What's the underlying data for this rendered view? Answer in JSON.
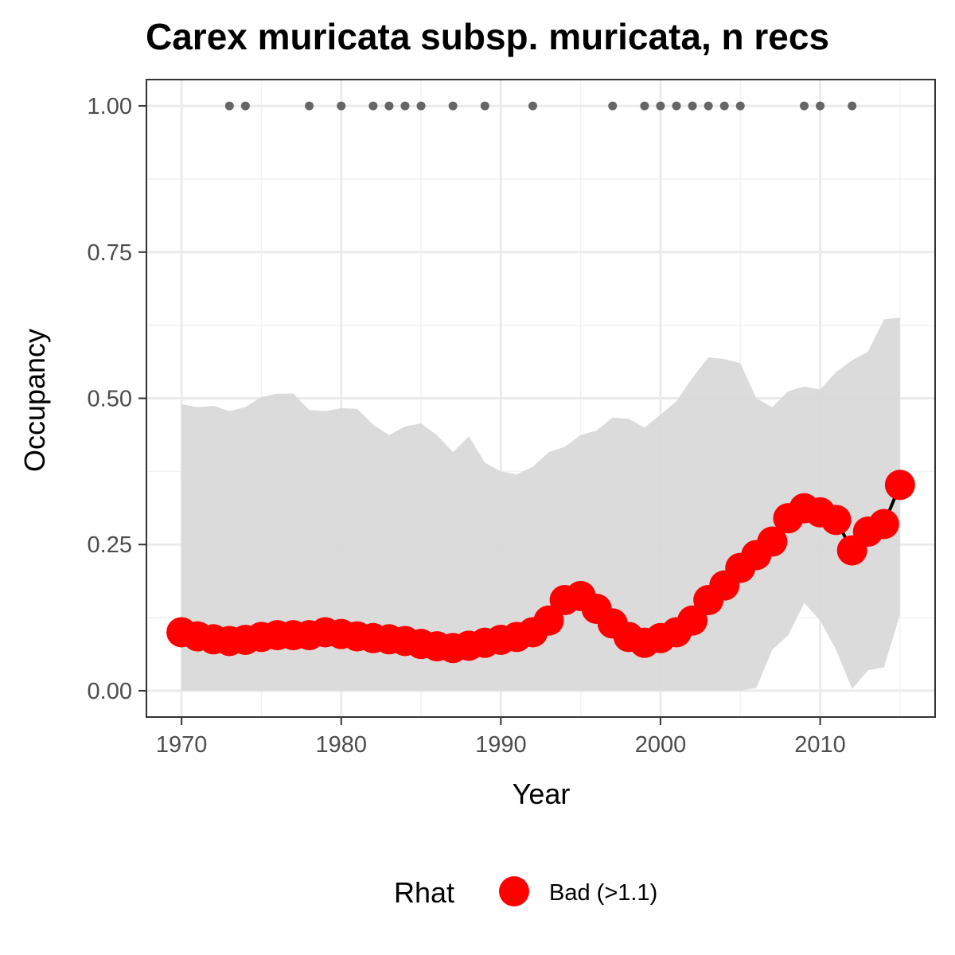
{
  "chart_data": {
    "type": "line",
    "title": "Carex muricata subsp. muricata, n recs",
    "xlabel": "Year",
    "ylabel": "Occupancy",
    "xlim": [
      1967.8,
      2017.2
    ],
    "ylim": [
      -0.045,
      1.045
    ],
    "x_ticks": [
      1970,
      1980,
      1990,
      2000,
      2010
    ],
    "x_tick_labels": [
      "1970",
      "1980",
      "1990",
      "2000",
      "2010"
    ],
    "y_ticks": [
      0,
      0.25,
      0.5,
      0.75,
      1.0
    ],
    "y_tick_labels": [
      "0.00",
      "0.25",
      "0.50",
      "0.75",
      "1.00"
    ],
    "grid": true,
    "legend": {
      "title": "Rhat",
      "position": "bottom",
      "entries": [
        {
          "label": "Bad (>1.1)",
          "color": "#ff0000"
        }
      ]
    },
    "colors": {
      "line": "#000000",
      "points": "#ff0000",
      "ribbon": "#d9d9d9",
      "records": "#666666"
    },
    "series": [
      {
        "x": [
          1970,
          1971,
          1972,
          1973,
          1974,
          1975,
          1976,
          1977,
          1978,
          1979,
          1980,
          1981,
          1982,
          1983,
          1984,
          1985,
          1986,
          1987,
          1988,
          1989,
          1990,
          1991,
          1992,
          1993,
          1994,
          1995,
          1996,
          1997,
          1998,
          1999,
          2000,
          2001,
          2002,
          2003,
          2004,
          2005,
          2006,
          2007,
          2008,
          2009,
          2010,
          2011,
          2012,
          2013,
          2014,
          2015
        ],
        "mean": [
          0.1,
          0.093,
          0.088,
          0.085,
          0.087,
          0.092,
          0.095,
          0.095,
          0.095,
          0.1,
          0.097,
          0.093,
          0.09,
          0.088,
          0.085,
          0.08,
          0.076,
          0.073,
          0.077,
          0.082,
          0.087,
          0.092,
          0.1,
          0.12,
          0.155,
          0.162,
          0.14,
          0.115,
          0.092,
          0.082,
          0.09,
          0.1,
          0.12,
          0.155,
          0.18,
          0.21,
          0.232,
          0.255,
          0.295,
          0.312,
          0.305,
          0.292,
          0.24,
          0.272,
          0.285,
          0.352
        ],
        "lower": [
          0,
          0,
          0,
          0,
          0,
          0,
          0,
          0,
          0,
          0,
          0,
          0,
          0,
          0,
          0,
          0,
          0,
          0,
          0,
          0,
          0,
          0,
          0,
          0,
          0,
          0,
          0,
          0,
          0,
          0,
          0,
          0,
          0,
          0,
          0,
          0,
          0.005,
          0.07,
          0.095,
          0.15,
          0.12,
          0.07,
          0.003,
          0.035,
          0.04,
          0.13
        ],
        "upper": [
          0.49,
          0.485,
          0.487,
          0.478,
          0.485,
          0.502,
          0.508,
          0.508,
          0.48,
          0.478,
          0.483,
          0.482,
          0.455,
          0.437,
          0.452,
          0.457,
          0.437,
          0.408,
          0.435,
          0.39,
          0.375,
          0.37,
          0.383,
          0.408,
          0.417,
          0.437,
          0.445,
          0.467,
          0.465,
          0.45,
          0.472,
          0.495,
          0.535,
          0.57,
          0.567,
          0.56,
          0.5,
          0.485,
          0.512,
          0.52,
          0.515,
          0.545,
          0.565,
          0.58,
          0.635,
          0.638
        ]
      }
    ],
    "record_years": [
      1973,
      1974,
      1978,
      1980,
      1982,
      1983,
      1984,
      1985,
      1987,
      1989,
      1992,
      1997,
      1999,
      2000,
      2001,
      2002,
      2003,
      2004,
      2005,
      2009,
      2010,
      2012
    ],
    "record_value": 1.0
  }
}
